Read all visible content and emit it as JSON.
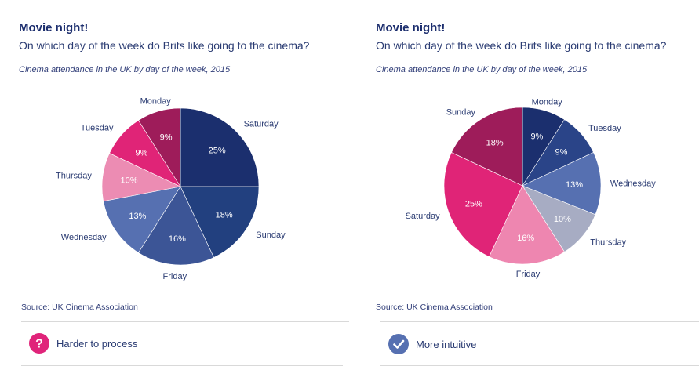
{
  "chart_data": [
    {
      "type": "pie",
      "title": "Movie night!",
      "subtitle": "On which day of the week do Brits like going to the cinema?",
      "caption": "Cinema attendance in the UK by day of the week, 2015",
      "source": "Source: UK Cinema Association",
      "slices": [
        {
          "label": "Saturday",
          "value": 25,
          "display": "25%",
          "color": "#1b2f6e"
        },
        {
          "label": "Sunday",
          "value": 18,
          "display": "18%",
          "color": "#22407f"
        },
        {
          "label": "Friday",
          "value": 16,
          "display": "16%",
          "color": "#3c5596"
        },
        {
          "label": "Wednesday",
          "value": 13,
          "display": "13%",
          "color": "#5670b1"
        },
        {
          "label": "Thursday",
          "value": 10,
          "display": "10%",
          "color": "#ec8cb3"
        },
        {
          "label": "Tuesday",
          "value": 9,
          "display": "9%",
          "color": "#e02477"
        },
        {
          "label": "Monday",
          "value": 9,
          "display": "9%",
          "color": "#9e1c5a"
        }
      ]
    },
    {
      "type": "pie",
      "title": "Movie night!",
      "subtitle": "On which day of the week do Brits like going to the cinema?",
      "caption": "Cinema attendance in the UK by day of the week, 2015",
      "source": "Source: UK Cinema Association",
      "slices": [
        {
          "label": "Monday",
          "value": 9,
          "display": "9%",
          "color": "#1b2f6e"
        },
        {
          "label": "Tuesday",
          "value": 9,
          "display": "9%",
          "color": "#2a4488"
        },
        {
          "label": "Wednesday",
          "value": 13,
          "display": "13%",
          "color": "#5670b1"
        },
        {
          "label": "Thursday",
          "value": 10,
          "display": "10%",
          "color": "#a7acc3"
        },
        {
          "label": "Friday",
          "value": 16,
          "display": "16%",
          "color": "#ee86b0"
        },
        {
          "label": "Saturday",
          "value": 25,
          "display": "25%",
          "color": "#e02477"
        },
        {
          "label": "Sunday",
          "value": 18,
          "display": "18%",
          "color": "#9e1c5a"
        }
      ]
    }
  ],
  "verdicts": [
    {
      "label": "Harder to process",
      "icon": "question-mark-icon",
      "color": "#e0247a"
    },
    {
      "label": "More intuitive",
      "icon": "checkmark-icon",
      "color": "#5670b1"
    }
  ]
}
